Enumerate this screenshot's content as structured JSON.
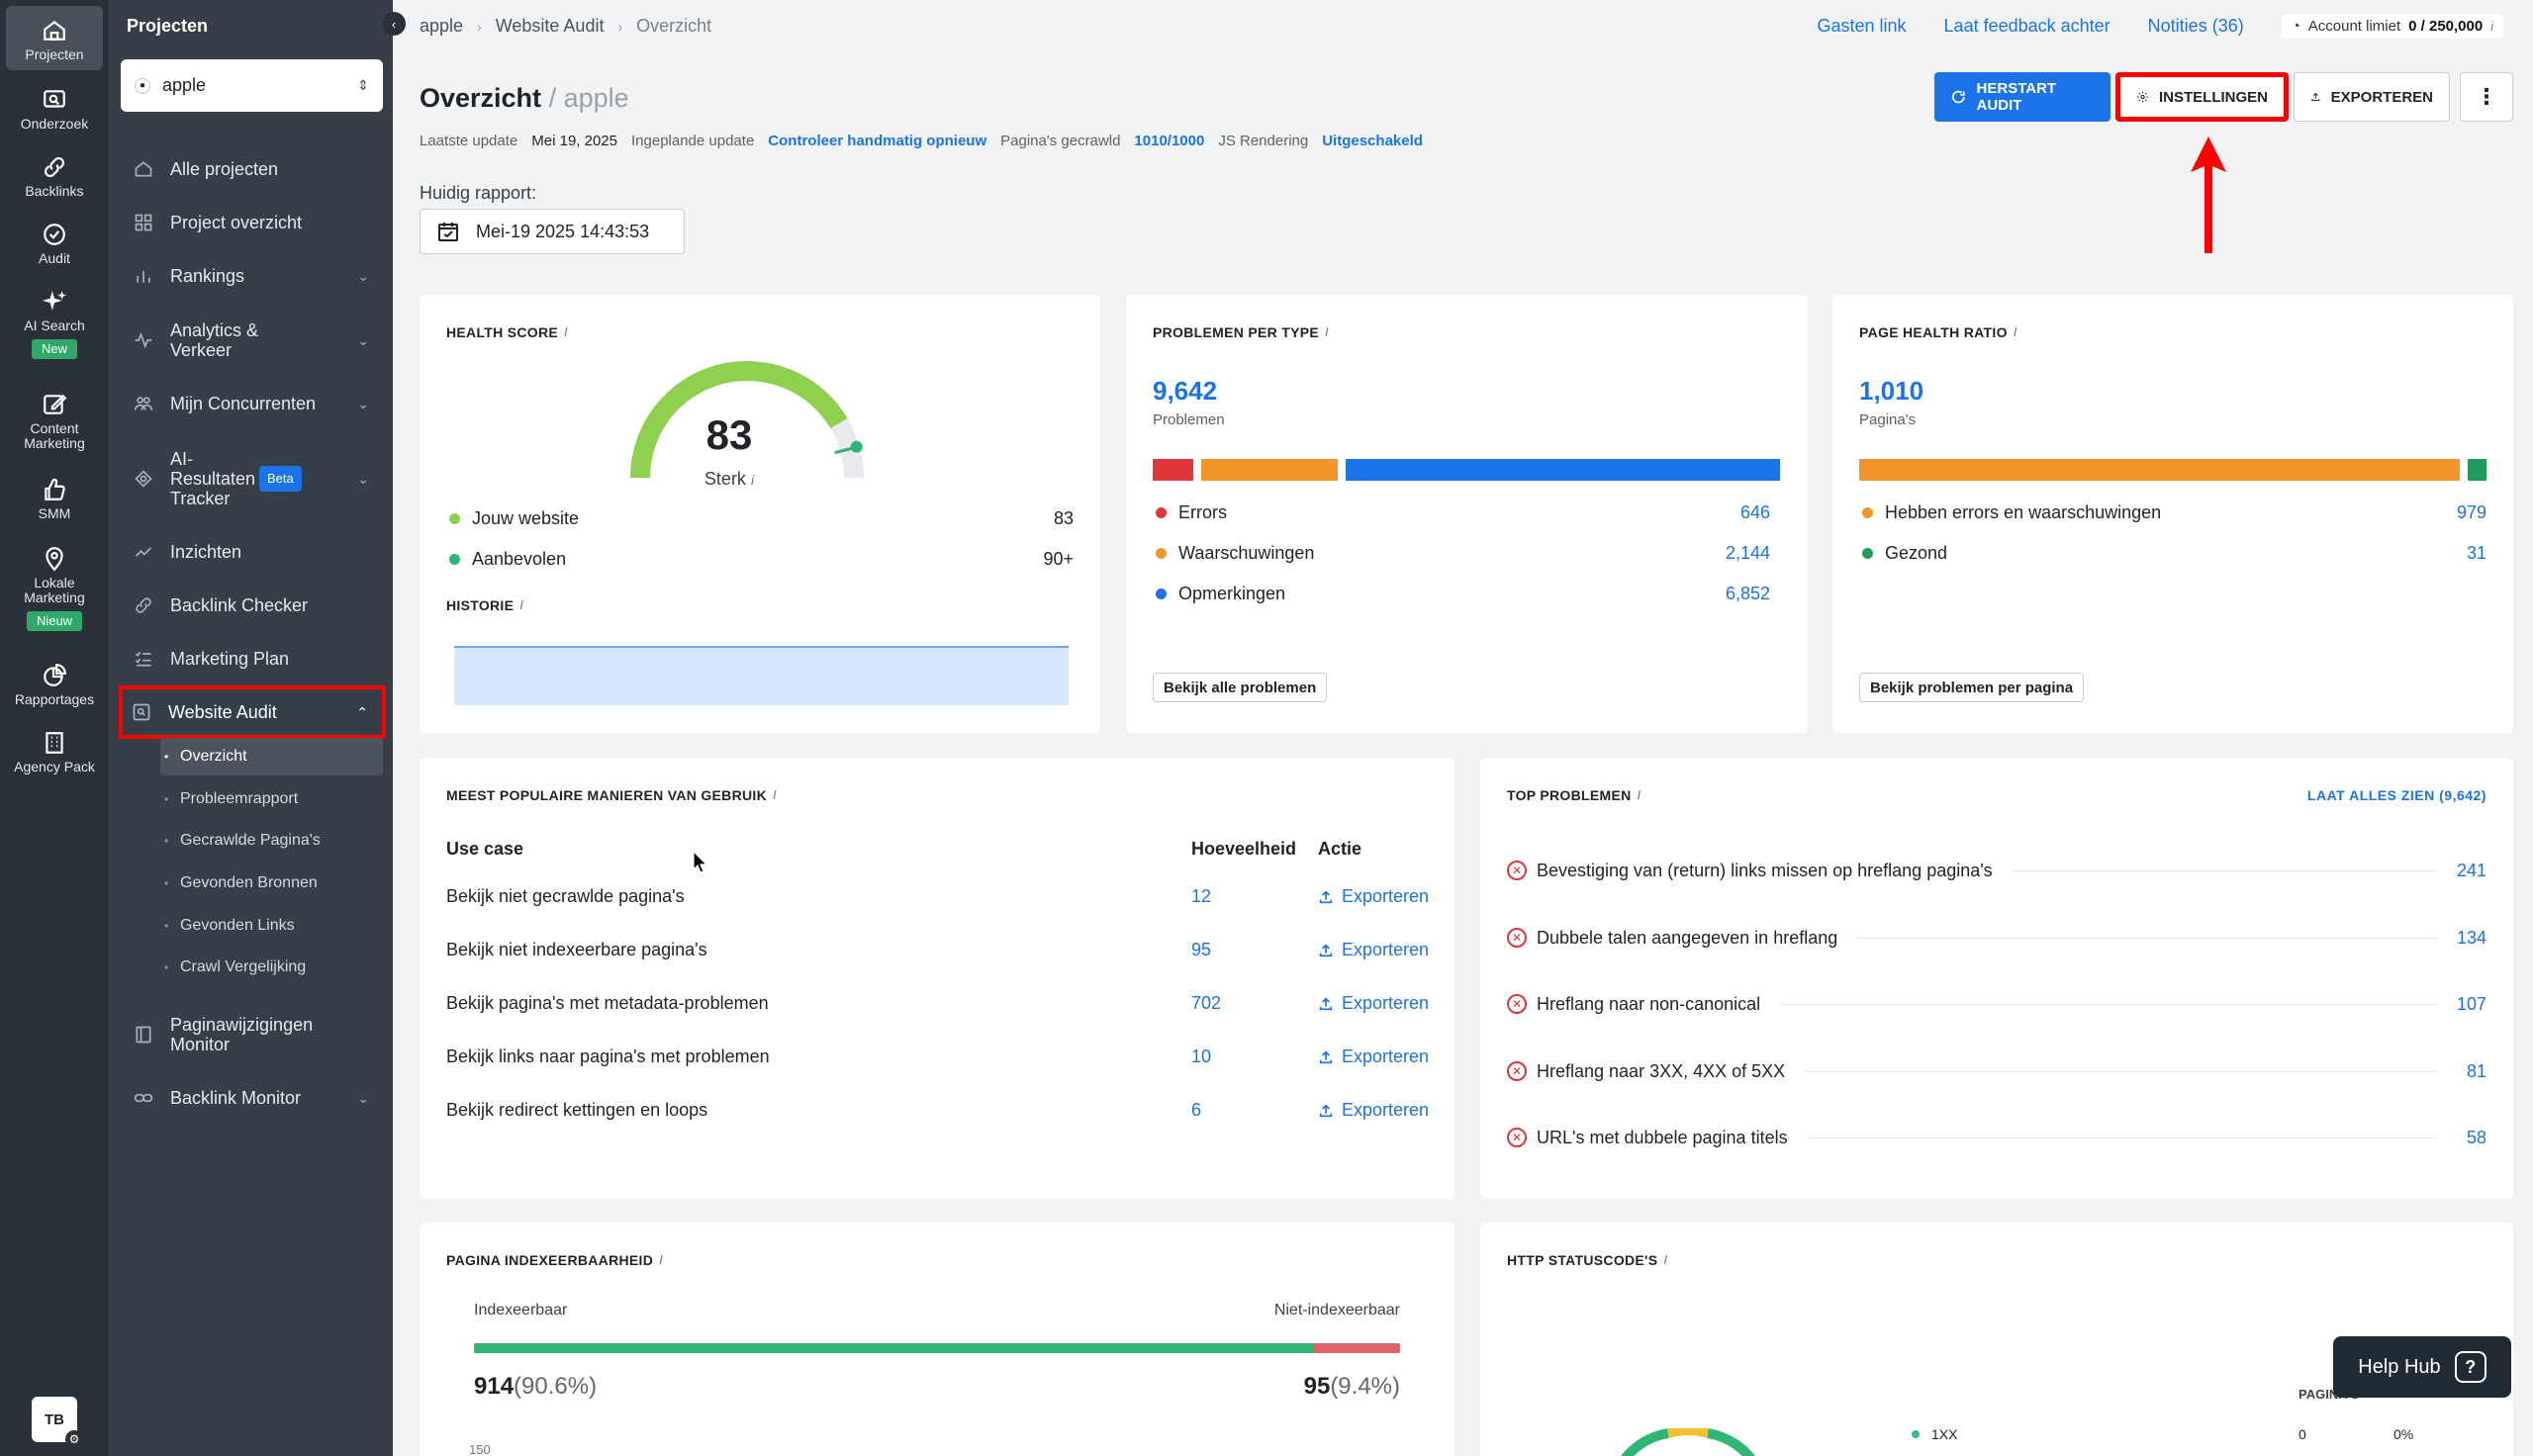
{
  "rail": {
    "items": [
      {
        "label": "Projecten",
        "icon": "home-icon"
      },
      {
        "label": "Onderzoek",
        "icon": "research-icon"
      },
      {
        "label": "Backlinks",
        "icon": "link-icon"
      },
      {
        "label": "Audit",
        "icon": "check-circle-icon"
      },
      {
        "label": "AI Search",
        "icon": "sparkle-icon",
        "badge": "New"
      },
      {
        "label": "Content Marketing",
        "icon": "edit-icon"
      },
      {
        "label": "SMM",
        "icon": "thumbs-up-icon"
      },
      {
        "label": "Lokale Marketing",
        "icon": "map-pin-icon",
        "badge": "Nieuw"
      },
      {
        "label": "Rapportages",
        "icon": "pie-chart-icon"
      },
      {
        "label": "Agency Pack",
        "icon": "building-icon"
      }
    ],
    "avatar": "TB"
  },
  "sidebar": {
    "title": "Projecten",
    "project_select": "apple",
    "items": [
      {
        "label": "Alle projecten"
      },
      {
        "label": "Project overzicht"
      },
      {
        "label": "Rankings"
      },
      {
        "label": "Analytics & Verkeer"
      },
      {
        "label": "Mijn Concurrenten"
      },
      {
        "label": "AI-Resultaten Tracker",
        "badge": "Beta"
      },
      {
        "label": "Inzichten"
      },
      {
        "label": "Backlink Checker"
      },
      {
        "label": "Marketing Plan"
      },
      {
        "label": "Website Audit"
      },
      {
        "label": "Paginawijzigingen Monitor"
      },
      {
        "label": "Backlink Monitor"
      }
    ],
    "subitems": [
      "Overzicht",
      "Probleemrapport",
      "Gecrawlde Pagina's",
      "Gevonden Bronnen",
      "Gevonden Links",
      "Crawl Vergelijking"
    ]
  },
  "breadcrumb": [
    "apple",
    "Website Audit",
    "Overzicht"
  ],
  "toplinks": {
    "guest": "Gasten link",
    "feedback": "Laat feedback achter",
    "notes": "Notities (36)",
    "account_label": "Account limiet",
    "account_value": "0 / 250,000"
  },
  "header": {
    "title": "Overzicht",
    "project": "/ apple",
    "last_update_label": "Laatste update",
    "last_update": "Mei 19, 2025",
    "scheduled_label": "Ingeplande update",
    "scheduled": "Controleer handmatig opnieuw",
    "pages_label": "Pagina's gecrawld",
    "pages": "1010/1000",
    "js_label": "JS Rendering",
    "js": "Uitgeschakeld",
    "btn_restart": "Herstart audit",
    "btn_settings": "Instellingen",
    "btn_export": "Exporteren",
    "btn_more": "⋮"
  },
  "report": {
    "label": "Huidig rapport:",
    "date": "Mei-19 2025 14:43:53"
  },
  "health": {
    "title": "Health score",
    "score": 83,
    "score_label": "Sterk",
    "recommended_score": 90,
    "rows": [
      {
        "label": "Jouw website",
        "value": "83",
        "color": "#8fd14f"
      },
      {
        "label": "Aanbevolen",
        "value": "90+",
        "color": "#2fb574"
      }
    ],
    "history_title": "Historie"
  },
  "problems": {
    "title": "Problemen per type",
    "total": "9,642",
    "total_label": "Problemen",
    "rows": [
      {
        "label": "Errors",
        "value": "646",
        "color": "#e0363a"
      },
      {
        "label": "Waarschuwingen",
        "value": "2,144",
        "color": "#f2962c"
      },
      {
        "label": "Opmerkingen",
        "value": "6,852",
        "color": "#1a73e8"
      }
    ],
    "button": "Bekijk alle problemen"
  },
  "ratio": {
    "title": "Page Health Ratio",
    "total": "1,010",
    "total_label": "Pagina's",
    "rows": [
      {
        "label": "Hebben errors en waarschuwingen",
        "value": "979",
        "color": "#f2962c"
      },
      {
        "label": "Gezond",
        "value": "31",
        "color": "#1e9e5a"
      }
    ],
    "button": "Bekijk problemen per pagina"
  },
  "usage": {
    "title": "Meest populaire manieren van gebruik",
    "headers": [
      "Use case",
      "Hoeveelheid",
      "Actie"
    ],
    "rows": [
      {
        "label": "Bekijk niet gecrawlde pagina's",
        "value": "12",
        "action": "Exporteren"
      },
      {
        "label": "Bekijk niet indexeerbare pagina's",
        "value": "95",
        "action": "Exporteren"
      },
      {
        "label": "Bekijk pagina's met metadata-problemen",
        "value": "702",
        "action": "Exporteren"
      },
      {
        "label": "Bekijk links naar pagina's met problemen",
        "value": "10",
        "action": "Exporteren"
      },
      {
        "label": "Bekijk redirect kettingen en loops",
        "value": "6",
        "action": "Exporteren"
      }
    ]
  },
  "top": {
    "title": "Top problemen",
    "see_all": "Laat alles zien (9,642)",
    "rows": [
      {
        "label": "Bevestiging van (return) links missen op hreflang pagina's",
        "value": "241"
      },
      {
        "label": "Dubbele talen aangegeven in hreflang",
        "value": "134"
      },
      {
        "label": "Hreflang naar non-canonical",
        "value": "107"
      },
      {
        "label": "Hreflang naar 3XX, 4XX of 5XX",
        "value": "81"
      },
      {
        "label": "URL's met dubbele pagina titels",
        "value": "58"
      }
    ]
  },
  "index": {
    "title": "Pagina indexeerbaarheid",
    "left_label": "Indexeerbaar",
    "right_label": "Niet-indexeerbaar",
    "left_value": "914",
    "left_pct": "(90.6%)",
    "right_value": "95",
    "right_pct": "(9.4%)",
    "fraction": 0.906,
    "axis_tick": "150"
  },
  "http": {
    "title": "HTTP statuscode's",
    "col_label": "PAGINA'S",
    "rows": [
      {
        "label": "1XX",
        "count": "0",
        "pct": "0%"
      }
    ]
  },
  "help": {
    "label": "Help Hub"
  }
}
